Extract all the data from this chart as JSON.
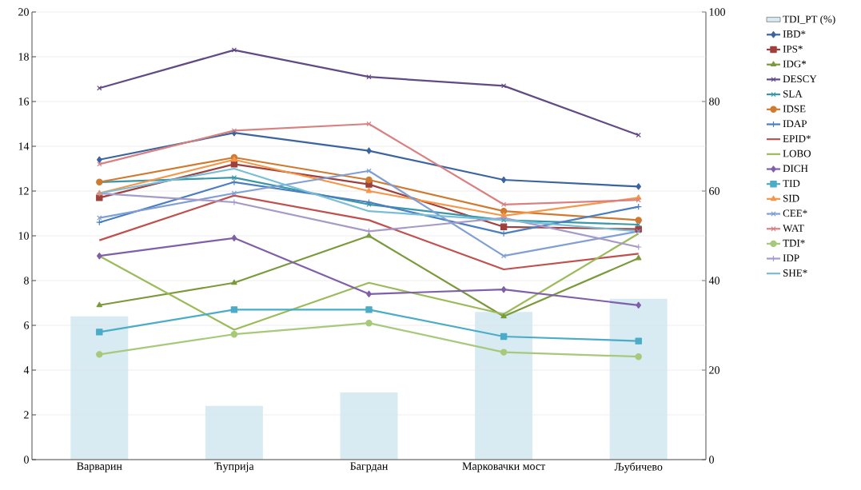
{
  "chart_data": {
    "type": "line",
    "categories": [
      "Варварин",
      "Ћуприја",
      "Багрдан",
      "Марковачки мост",
      "Љубичево"
    ],
    "ylim": [
      0,
      20
    ],
    "yticks": [
      0,
      2,
      4,
      6,
      8,
      10,
      12,
      14,
      16,
      18,
      20
    ],
    "y2lim": [
      0,
      100
    ],
    "y2ticks": [
      0,
      20,
      40,
      60,
      80,
      100
    ],
    "grid": "y",
    "legend": "right",
    "series": [
      {
        "name": "TDI_PT (%)",
        "type": "bar",
        "axis": "y2",
        "color": "#d8ebf3",
        "values": [
          32,
          12,
          15,
          33,
          36
        ]
      },
      {
        "name": "IBD*",
        "marker": "diamond",
        "color": "#3b64a0",
        "values": [
          13.4,
          14.6,
          13.8,
          12.5,
          12.2
        ]
      },
      {
        "name": "IPS*",
        "marker": "square",
        "color": "#a0403c",
        "values": [
          11.7,
          13.2,
          12.3,
          10.4,
          10.3
        ]
      },
      {
        "name": "IDG*",
        "marker": "triangle",
        "color": "#7a9a3c",
        "values": [
          6.9,
          7.9,
          10.0,
          6.4,
          9.0
        ]
      },
      {
        "name": "DESCY",
        "marker": "cross",
        "color": "#614a85",
        "values": [
          16.6,
          18.3,
          17.1,
          16.7,
          14.5
        ]
      },
      {
        "name": "SLA",
        "marker": "cross",
        "color": "#3a96a9",
        "values": [
          12.4,
          12.6,
          11.4,
          10.7,
          10.5
        ]
      },
      {
        "name": "IDSE",
        "marker": "circle",
        "color": "#d07a30",
        "values": [
          12.4,
          13.5,
          12.5,
          11.1,
          10.7
        ]
      },
      {
        "name": "IDAP",
        "marker": "plus",
        "color": "#4a7ec0",
        "values": [
          10.6,
          12.4,
          11.5,
          10.1,
          11.3
        ]
      },
      {
        "name": "EPID*",
        "marker": "none",
        "color": "#c0504d",
        "values": [
          9.8,
          11.8,
          10.7,
          8.5,
          9.2
        ]
      },
      {
        "name": "LOBO",
        "marker": "none",
        "color": "#9bbb59",
        "values": [
          9.1,
          5.8,
          7.9,
          6.5,
          10.1
        ]
      },
      {
        "name": "DICH",
        "marker": "diamond",
        "color": "#7f5fa8",
        "values": [
          9.1,
          9.9,
          7.4,
          7.6,
          6.9
        ]
      },
      {
        "name": "TID",
        "marker": "square",
        "color": "#4aacc6",
        "values": [
          5.7,
          6.7,
          6.7,
          5.5,
          5.3
        ]
      },
      {
        "name": "SID",
        "marker": "triangle",
        "color": "#f79646",
        "values": [
          11.9,
          13.4,
          12.0,
          10.9,
          11.7
        ]
      },
      {
        "name": "CEE*",
        "marker": "cross",
        "color": "#7f9fd6",
        "values": [
          10.8,
          11.9,
          12.9,
          9.1,
          10.2
        ]
      },
      {
        "name": "WAT",
        "marker": "cross",
        "color": "#d98080",
        "values": [
          13.2,
          14.7,
          15.0,
          11.4,
          11.6
        ]
      },
      {
        "name": "TDI*",
        "marker": "circle",
        "color": "#a7c97a",
        "values": [
          4.7,
          5.6,
          6.1,
          4.8,
          4.6
        ]
      },
      {
        "name": "IDP",
        "marker": "plus",
        "color": "#a69bc8",
        "values": [
          11.9,
          11.5,
          10.2,
          10.8,
          9.5
        ]
      },
      {
        "name": "SHE*",
        "marker": "none",
        "color": "#78bed8",
        "values": [
          11.9,
          13.0,
          11.1,
          10.7,
          10.2
        ]
      }
    ]
  }
}
